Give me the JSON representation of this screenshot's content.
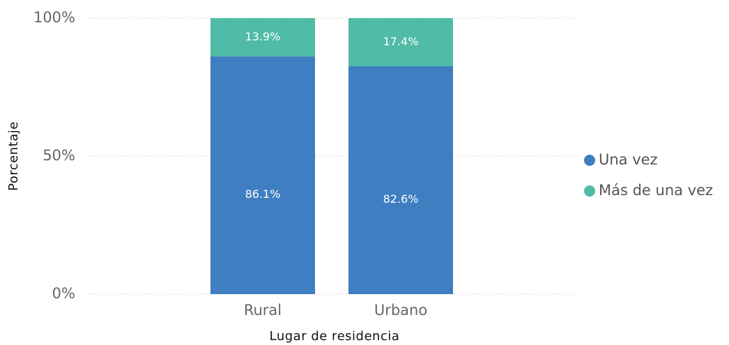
{
  "chart_data": {
    "type": "stacked_bar",
    "x_label": "Lugar de residencia",
    "y_label": "Porcentaje",
    "categories": [
      "Rural",
      "Urbano"
    ],
    "series": [
      {
        "name": "Una vez",
        "color": "#3f7ec1",
        "values": [
          86.1,
          82.6
        ],
        "value_labels": [
          "86.1%",
          "82.6%"
        ]
      },
      {
        "name": "Más de una vez",
        "color": "#50bba6",
        "values": [
          13.9,
          17.4
        ],
        "value_labels": [
          "13.9%",
          "17.4%"
        ]
      }
    ],
    "ylim": [
      0,
      100
    ],
    "yticks": [
      {
        "value": 0,
        "label": "0%"
      },
      {
        "value": 50,
        "label": "50%"
      },
      {
        "value": 100,
        "label": "100%"
      }
    ],
    "grid": true,
    "legend": "right"
  }
}
